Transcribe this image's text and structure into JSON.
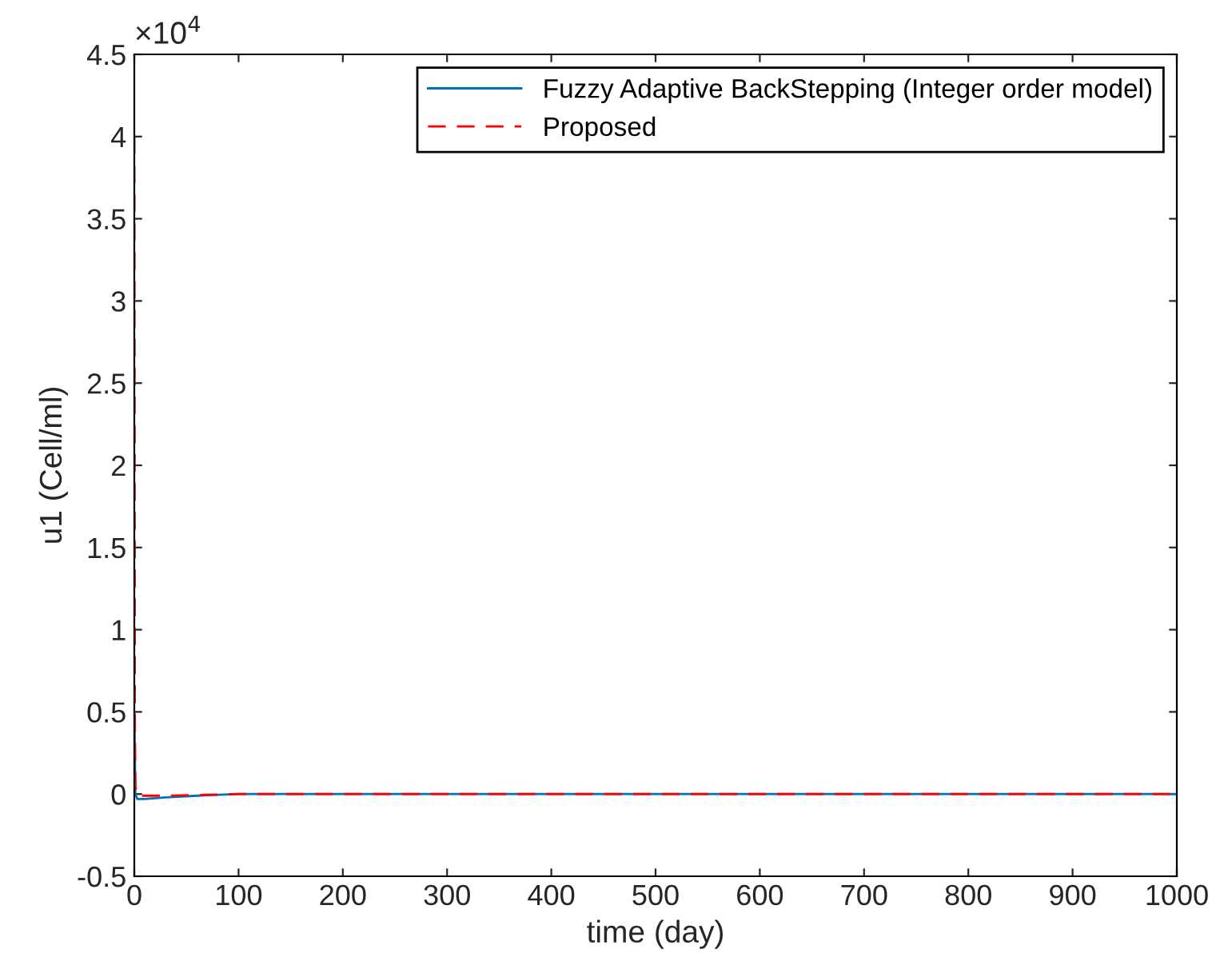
{
  "chart_data": {
    "type": "line",
    "xlabel": "time (day)",
    "ylabel": "u1 (Cell/ml)",
    "xlim": [
      0,
      1000
    ],
    "ylim": [
      -0.5,
      4.5
    ],
    "xticks": [
      0,
      100,
      200,
      300,
      400,
      500,
      600,
      700,
      800,
      900,
      1000
    ],
    "yticks": [
      -0.5,
      0,
      0.5,
      1,
      1.5,
      2,
      2.5,
      3,
      3.5,
      4,
      4.5
    ],
    "annotations": [
      "×10$^{4}$"
    ],
    "legend": "top right",
    "grid": false,
    "series": [
      {
        "name": "Fuzzy Adaptive BackStepping (Integer order model)",
        "color": "#0072bd",
        "line_style": "solid",
        "x": [
          0,
          1,
          3,
          10,
          30,
          60,
          100,
          150,
          200,
          1000
        ],
        "values": [
          0.5,
          0.0,
          -0.03,
          -0.03,
          -0.02,
          -0.01,
          0,
          0,
          0,
          0
        ]
      },
      {
        "name": "Proposed",
        "color": "#ff0000",
        "line_style": "dashed",
        "x": [
          0,
          0.5,
          1,
          3,
          30,
          100,
          1000
        ],
        "values": [
          4.0,
          0.5,
          0.05,
          -0.01,
          -0.01,
          0,
          0
        ]
      }
    ]
  }
}
